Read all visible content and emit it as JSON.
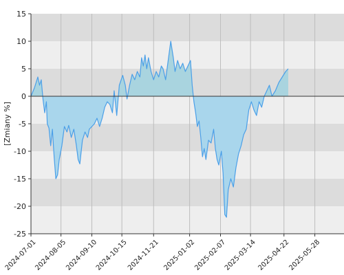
{
  "chart_data": {
    "type": "area",
    "ylabel": "[Zmiany %]",
    "ylim": [
      -25,
      15
    ],
    "yticks": [
      15,
      10,
      5,
      0,
      -5,
      -10,
      -15,
      -20,
      -25
    ],
    "ytick_labels": [
      "15",
      "10",
      "5",
      "0",
      "-5",
      "-10",
      "-15",
      "-20",
      "-25"
    ],
    "xlim": [
      "2024-07-01",
      "2025-07-01"
    ],
    "xticks": [
      "2024-07-01",
      "2024-08-05",
      "2024-09-10",
      "2024-10-15",
      "2024-11-21",
      "2025-01-02",
      "2025-02-07",
      "2025-03-14",
      "2025-04-22",
      "2025-05-28"
    ],
    "grid": true,
    "colors": {
      "line": "#4a9fe8",
      "fill_positive": "#a9d4df",
      "fill_negative": "#a9d6ec",
      "band_dark": "#dcdcdc",
      "band_light": "#eeeeee",
      "gridline": "#bdbdbd",
      "axis": "#333333"
    },
    "series": [
      {
        "points": [
          [
            "2024-07-01",
            0
          ],
          [
            "2024-07-05",
            1.5
          ],
          [
            "2024-07-09",
            3.5
          ],
          [
            "2024-07-11",
            2.0
          ],
          [
            "2024-07-13",
            3.0
          ],
          [
            "2024-07-15",
            -0.5
          ],
          [
            "2024-07-17",
            -3.0
          ],
          [
            "2024-07-19",
            -1.0
          ],
          [
            "2024-07-20",
            -5.0
          ],
          [
            "2024-07-22",
            -5.8
          ],
          [
            "2024-07-24",
            -9.0
          ],
          [
            "2024-07-26",
            -6.0
          ],
          [
            "2024-07-28",
            -11.0
          ],
          [
            "2024-07-30",
            -15.0
          ],
          [
            "2024-08-01",
            -14.3
          ],
          [
            "2024-08-03",
            -11.5
          ],
          [
            "2024-08-06",
            -9.0
          ],
          [
            "2024-08-09",
            -5.5
          ],
          [
            "2024-08-12",
            -6.5
          ],
          [
            "2024-08-14",
            -5.3
          ],
          [
            "2024-08-17",
            -7.5
          ],
          [
            "2024-08-20",
            -6.0
          ],
          [
            "2024-08-23",
            -9.0
          ],
          [
            "2024-08-25",
            -11.5
          ],
          [
            "2024-08-27",
            -12.3
          ],
          [
            "2024-08-30",
            -8.0
          ],
          [
            "2024-09-02",
            -6.5
          ],
          [
            "2024-09-05",
            -7.5
          ],
          [
            "2024-09-07",
            -6.0
          ],
          [
            "2024-09-10",
            -5.5
          ],
          [
            "2024-09-13",
            -5.0
          ],
          [
            "2024-09-16",
            -4.0
          ],
          [
            "2024-09-19",
            -5.5
          ],
          [
            "2024-09-22",
            -4.0
          ],
          [
            "2024-09-25",
            -2.0
          ],
          [
            "2024-09-28",
            -1.0
          ],
          [
            "2024-10-01",
            -1.5
          ],
          [
            "2024-10-04",
            -3.0
          ],
          [
            "2024-10-06",
            1.0
          ],
          [
            "2024-10-09",
            -3.5
          ],
          [
            "2024-10-12",
            2.0
          ],
          [
            "2024-10-16",
            3.8
          ],
          [
            "2024-10-19",
            2.0
          ],
          [
            "2024-10-21",
            -0.5
          ],
          [
            "2024-10-24",
            2.0
          ],
          [
            "2024-10-27",
            4.0
          ],
          [
            "2024-10-30",
            3.0
          ],
          [
            "2024-11-02",
            4.5
          ],
          [
            "2024-11-05",
            3.5
          ],
          [
            "2024-11-07",
            7.0
          ],
          [
            "2024-11-09",
            5.5
          ],
          [
            "2024-11-11",
            7.5
          ],
          [
            "2024-11-13",
            5.0
          ],
          [
            "2024-11-15",
            7.0
          ],
          [
            "2024-11-18",
            4.5
          ],
          [
            "2024-11-21",
            3.0
          ],
          [
            "2024-11-24",
            4.5
          ],
          [
            "2024-11-27",
            3.5
          ],
          [
            "2024-11-30",
            5.5
          ],
          [
            "2024-12-02",
            5.0
          ],
          [
            "2024-12-05",
            3.0
          ],
          [
            "2024-12-08",
            6.5
          ],
          [
            "2024-12-11",
            10.0
          ],
          [
            "2024-12-14",
            7.0
          ],
          [
            "2024-12-16",
            4.5
          ],
          [
            "2024-12-19",
            6.5
          ],
          [
            "2024-12-22",
            5.0
          ],
          [
            "2024-12-25",
            6.0
          ],
          [
            "2024-12-28",
            4.5
          ],
          [
            "2024-12-31",
            5.5
          ],
          [
            "2025-01-03",
            6.5
          ],
          [
            "2025-01-05",
            2.0
          ],
          [
            "2025-01-07",
            -1.0
          ],
          [
            "2025-01-09",
            -3.0
          ],
          [
            "2025-01-11",
            -5.5
          ],
          [
            "2025-01-13",
            -4.5
          ],
          [
            "2025-01-15",
            -7.5
          ],
          [
            "2025-01-17",
            -11.0
          ],
          [
            "2025-01-19",
            -9.5
          ],
          [
            "2025-01-21",
            -11.5
          ],
          [
            "2025-01-24",
            -8.0
          ],
          [
            "2025-01-27",
            -8.5
          ],
          [
            "2025-01-30",
            -6.0
          ],
          [
            "2025-02-01",
            -9.5
          ],
          [
            "2025-02-03",
            -11.5
          ],
          [
            "2025-02-05",
            -12.5
          ],
          [
            "2025-02-08",
            -10.0
          ],
          [
            "2025-02-10",
            -14.0
          ],
          [
            "2025-02-12",
            -21.5
          ],
          [
            "2025-02-14",
            -22.0
          ],
          [
            "2025-02-16",
            -17.0
          ],
          [
            "2025-02-19",
            -15.0
          ],
          [
            "2025-02-22",
            -16.5
          ],
          [
            "2025-02-25",
            -13.0
          ],
          [
            "2025-02-28",
            -10.5
          ],
          [
            "2025-03-03",
            -9.0
          ],
          [
            "2025-03-06",
            -7.0
          ],
          [
            "2025-03-09",
            -6.0
          ],
          [
            "2025-03-12",
            -2.5
          ],
          [
            "2025-03-15",
            -1.0
          ],
          [
            "2025-03-18",
            -2.5
          ],
          [
            "2025-03-21",
            -3.5
          ],
          [
            "2025-03-24",
            -1.0
          ],
          [
            "2025-03-27",
            -2.0
          ],
          [
            "2025-03-30",
            0.0
          ],
          [
            "2025-04-02",
            1.0
          ],
          [
            "2025-04-05",
            2.0
          ],
          [
            "2025-04-08",
            0.0
          ],
          [
            "2025-04-12",
            1.0
          ],
          [
            "2025-04-16",
            2.5
          ],
          [
            "2025-04-20",
            3.5
          ],
          [
            "2025-04-24",
            4.5
          ],
          [
            "2025-04-27",
            5.0
          ]
        ]
      }
    ]
  }
}
